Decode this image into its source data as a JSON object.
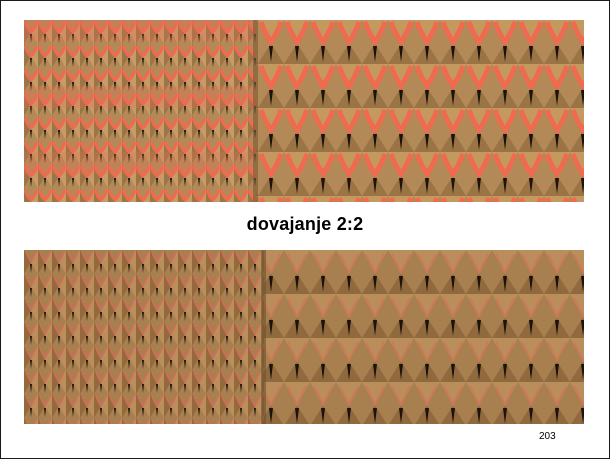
{
  "caption": "dovajanje 2:2",
  "page_number": "203",
  "images": {
    "top": {
      "icon": "knit-fabric-texture",
      "stitch": "#b48958",
      "accent": "#f06a50",
      "gap": "#1d1208"
    },
    "bottom": {
      "icon": "knit-fabric-texture",
      "stitch": "#a8804f",
      "accent": "#e0685a",
      "gap": "#1d1208"
    }
  }
}
